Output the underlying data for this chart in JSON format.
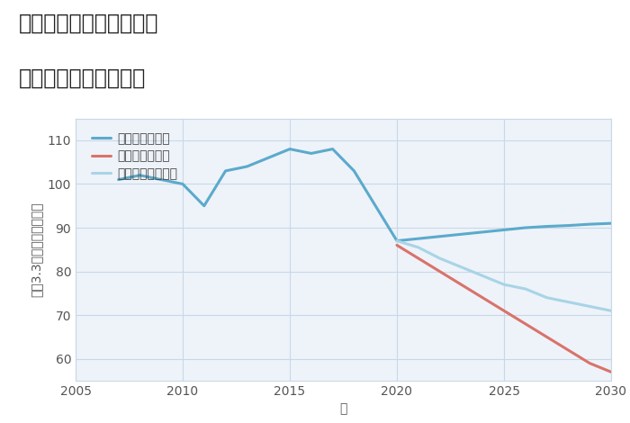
{
  "title_line1": "福岡県中間市上底井野の",
  "title_line2": "中古戸建ての価格推移",
  "xlabel": "年",
  "ylabel": "坪（3.3㎡）単価（万円）",
  "xlim": [
    2005,
    2030
  ],
  "ylim": [
    55,
    115
  ],
  "yticks": [
    60,
    70,
    80,
    90,
    100,
    110
  ],
  "xticks": [
    2005,
    2010,
    2015,
    2020,
    2025,
    2030
  ],
  "good_scenario": {
    "x": [
      2007,
      2008,
      2009,
      2010,
      2011,
      2012,
      2013,
      2014,
      2015,
      2016,
      2017,
      2018,
      2019,
      2020,
      2021,
      2022,
      2023,
      2024,
      2025,
      2026,
      2027,
      2028,
      2029,
      2030
    ],
    "y": [
      101,
      102,
      101,
      100,
      95,
      103,
      104,
      106,
      108,
      107,
      108,
      103,
      95,
      87,
      87.5,
      88,
      88.5,
      89,
      89.5,
      90,
      90.3,
      90.5,
      90.8,
      91
    ],
    "color": "#5baacc",
    "linewidth": 2.2,
    "label": "グッドシナリオ"
  },
  "bad_scenario": {
    "x": [
      2020,
      2021,
      2022,
      2023,
      2024,
      2025,
      2026,
      2027,
      2028,
      2029,
      2030
    ],
    "y": [
      86,
      83,
      80,
      77,
      74,
      71,
      68,
      65,
      62,
      59,
      57
    ],
    "color": "#d9736b",
    "linewidth": 2.2,
    "label": "バッドシナリオ"
  },
  "normal_scenario": {
    "x": [
      2020,
      2021,
      2022,
      2023,
      2024,
      2025,
      2026,
      2027,
      2028,
      2029,
      2030
    ],
    "y": [
      87,
      85.5,
      83,
      81,
      79,
      77,
      76,
      74,
      73,
      72,
      71
    ],
    "color": "#a8d4e6",
    "linewidth": 2.2,
    "label": "ノーマルシナリオ"
  },
  "background_color": "#eef3f9",
  "grid_color": "#c8d8e8",
  "title_fontsize": 17,
  "label_fontsize": 10,
  "tick_fontsize": 10,
  "legend_fontsize": 10
}
